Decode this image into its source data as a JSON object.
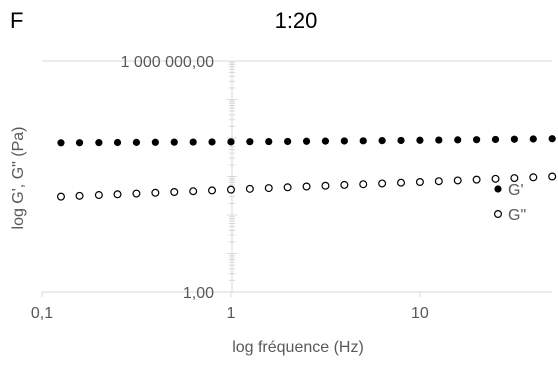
{
  "panel_label": "F",
  "colors": {
    "axis": "#d9d9d9",
    "text": "#595959",
    "marker": "#000000"
  },
  "chart_data": {
    "type": "scatter",
    "title": "1:20",
    "xlabel": "log fréquence (Hz)",
    "ylabel": "log G', G\" (Pa)",
    "x_scale": "log",
    "y_scale": "log",
    "xlim": [
      0.1,
      50
    ],
    "ylim": [
      1,
      1000000
    ],
    "x_ticks": [
      0.1,
      1,
      10
    ],
    "x_tick_labels": [
      "0,1",
      "1",
      "10"
    ],
    "y_ticks": [
      1,
      1000000
    ],
    "y_tick_labels": [
      "1,00",
      "1 000 000,00"
    ],
    "grid": "horizontal-top-only",
    "legend_position": "right",
    "series": [
      {
        "name": "G'",
        "marker": "filled-circle",
        "x": [
          0.126,
          0.158,
          0.2,
          0.251,
          0.316,
          0.398,
          0.501,
          0.631,
          0.794,
          1.0,
          1.259,
          1.585,
          1.995,
          2.512,
          3.162,
          3.981,
          5.012,
          6.31,
          7.943,
          10.0,
          12.59,
          15.85,
          19.95,
          25.12,
          31.62,
          39.81,
          50.12
        ],
        "y": [
          7500,
          7540,
          7590,
          7640,
          7690,
          7740,
          7800,
          7850,
          7900,
          7960,
          8020,
          8080,
          8150,
          8220,
          8290,
          8370,
          8450,
          8540,
          8630,
          8730,
          8830,
          8940,
          9050,
          9170,
          9290,
          9420,
          9560
        ]
      },
      {
        "name": "G\"",
        "marker": "open-circle",
        "x": [
          0.126,
          0.158,
          0.2,
          0.251,
          0.316,
          0.398,
          0.501,
          0.631,
          0.794,
          1.0,
          1.259,
          1.585,
          1.995,
          2.512,
          3.162,
          3.981,
          5.012,
          6.31,
          7.943,
          10.0,
          12.59,
          15.85,
          19.95,
          25.12,
          31.62,
          39.81,
          50.12
        ],
        "y": [
          300,
          315,
          330,
          345,
          360,
          378,
          396,
          415,
          435,
          456,
          478,
          500,
          525,
          550,
          575,
          605,
          630,
          660,
          690,
          720,
          755,
          790,
          830,
          870,
          910,
          955,
          1000
        ]
      }
    ]
  }
}
